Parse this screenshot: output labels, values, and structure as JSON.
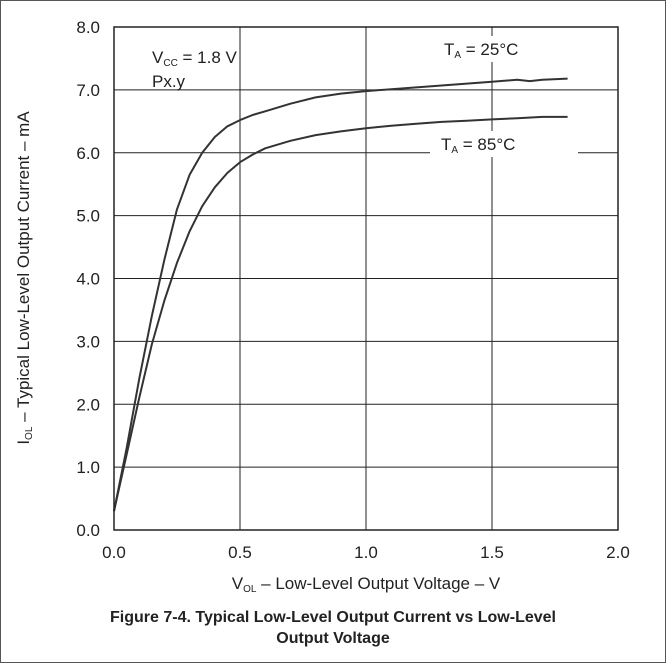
{
  "chart_data": {
    "type": "line",
    "x_range": [
      0.0,
      2.0
    ],
    "y_range": [
      0.0,
      8.0
    ],
    "x_ticks": [
      "0.0",
      "0.5",
      "1.0",
      "1.5",
      "2.0"
    ],
    "y_ticks": [
      "0.0",
      "1.0",
      "2.0",
      "3.0",
      "4.0",
      "5.0",
      "6.0",
      "7.0",
      "8.0"
    ],
    "grid": true,
    "xlabel": {
      "main": "V",
      "sub": "OL",
      "rest": " – Low-Level Output Voltage – V"
    },
    "ylabel": {
      "main": "I",
      "sub": "OL",
      "rest": " – Typical Low-Level Output Current – mA"
    },
    "annotations": {
      "vcc": {
        "main": "V",
        "sub": "CC",
        "rest": " = 1.8 V"
      },
      "port": "Px.y",
      "ta25": {
        "main": "T",
        "sub": "A",
        "rest": " = 25°C"
      },
      "ta85": {
        "main": "T",
        "sub": "A",
        "rest": " = 85°C"
      }
    },
    "series": [
      {
        "color": "#333333",
        "x": [
          0.0,
          0.05,
          0.1,
          0.15,
          0.2,
          0.25,
          0.3,
          0.35,
          0.4,
          0.45,
          0.5,
          0.55,
          0.6,
          0.7,
          0.8,
          0.9,
          1.0,
          1.1,
          1.2,
          1.3,
          1.4,
          1.5,
          1.6,
          1.65,
          1.7,
          1.8
        ],
        "y": [
          0.3,
          1.3,
          2.4,
          3.4,
          4.3,
          5.1,
          5.65,
          6.0,
          6.25,
          6.42,
          6.52,
          6.6,
          6.66,
          6.78,
          6.88,
          6.94,
          6.98,
          7.01,
          7.04,
          7.07,
          7.1,
          7.13,
          7.16,
          7.14,
          7.16,
          7.18
        ]
      },
      {
        "color": "#333333",
        "x": [
          0.0,
          0.05,
          0.1,
          0.15,
          0.2,
          0.25,
          0.3,
          0.35,
          0.4,
          0.45,
          0.5,
          0.55,
          0.6,
          0.7,
          0.8,
          0.9,
          1.0,
          1.1,
          1.2,
          1.3,
          1.4,
          1.5,
          1.6,
          1.7,
          1.8
        ],
        "y": [
          0.3,
          1.2,
          2.1,
          2.95,
          3.65,
          4.25,
          4.75,
          5.15,
          5.45,
          5.68,
          5.85,
          5.97,
          6.07,
          6.19,
          6.28,
          6.34,
          6.39,
          6.43,
          6.46,
          6.49,
          6.51,
          6.53,
          6.55,
          6.57,
          6.57
        ]
      }
    ]
  },
  "caption": {
    "line1": "Figure 7-4. Typical Low-Level Output Current vs Low-Level",
    "line2": "Output Voltage"
  }
}
